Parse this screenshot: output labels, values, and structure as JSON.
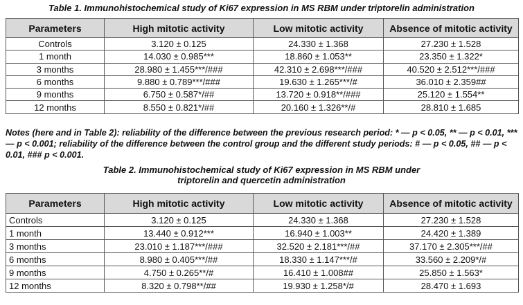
{
  "table1": {
    "title": "Table 1. Immunohistochemical study of Ki67 expression in MS RBM under triptorelin administration",
    "headers": [
      "Parameters",
      "High mitotic activity",
      "Low mitotic activity",
      "Absence of mitotic activity"
    ],
    "rows": [
      [
        "Controls",
        "3.120 ± 0.125",
        "24.330 ± 1.368",
        "27.230 ± 1.528"
      ],
      [
        "1 month",
        "14.030 ± 0.985***",
        "18.860 ± 1.053**",
        "23.350 ± 1.322*"
      ],
      [
        "3 months",
        "28.980 ± 1.455***/###",
        "42.310 ± 2.698***/###",
        "40.520 ± 2.512***/###"
      ],
      [
        "6 months",
        "9.880 ± 0.789***/###",
        "19.630 ± 1.265***/#",
        "36.010 ± 2.359##"
      ],
      [
        "9 months",
        "6.750 ± 0.587*/##",
        "13.720 ± 0.918**/###",
        "25.120 ± 1.554**"
      ],
      [
        "12 months",
        "8.550 ± 0.821*/##",
        "20.160 ± 1.326**/#",
        "28.810 ± 1.685"
      ]
    ]
  },
  "notes": "Notes (here and in Table 2): reliability of the difference between the previous research period: * — p < 0.05, ** — p < 0.01, *** — p < 0.001; reliability of the difference between the control group and the different study periods: # — p < 0.05, ## — p < 0.01, ### p < 0.001.",
  "table2": {
    "title": "Table 2. Immunohistochemical study of Ki67 expression in MS RBM under triptorelin and quercetin administration",
    "headers": [
      "Parameters",
      "High mitotic activity",
      "Low mitotic activity",
      "Absence of mitotic activity"
    ],
    "rows": [
      [
        "Controls",
        "3.120 ± 0.125",
        "24.330 ± 1.368",
        "27.230 ± 1.528"
      ],
      [
        "1 month",
        "13.440 ± 0.912***",
        "16.940 ± 1.003**",
        "24.420 ± 1.389"
      ],
      [
        "3 months",
        "23.010 ± 1.187***/###",
        "32.520 ± 2.181***/##",
        "37.170 ± 2.305***/##"
      ],
      [
        "6 months",
        "8.980 ± 0.405***/##",
        "18.330 ± 1.147***/#",
        "33.560 ± 2.209*/#"
      ],
      [
        "9 months",
        "4.750 ± 0.265**/#",
        "16.410 ± 1.008##",
        "25.850 ± 1.563*"
      ],
      [
        "12 months",
        "8.320 ± 0.798**/##",
        "19.930 ± 1.258*/#",
        "28.470 ± 1.693"
      ]
    ]
  }
}
